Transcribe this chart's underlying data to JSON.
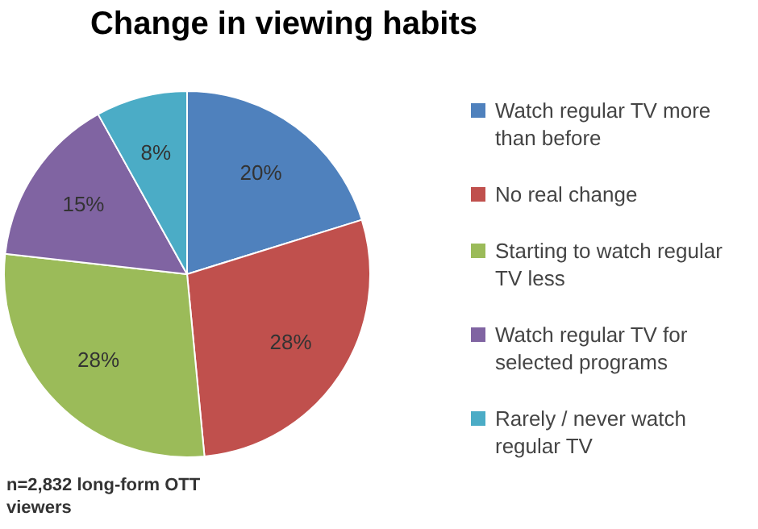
{
  "chart_data": {
    "type": "pie",
    "title": "Change in viewing habits",
    "categories": [
      "Watch regular TV more than before",
      "No real change",
      "Starting to watch regular TV less",
      "Watch regular TV for selected programs",
      "Rarely / never watch regular TV"
    ],
    "values": [
      20,
      28,
      28,
      15,
      8
    ],
    "colors": [
      "#4f81bd",
      "#c0504d",
      "#9bbb59",
      "#8064a2",
      "#4bacc6"
    ],
    "value_labels": [
      "20%",
      "28%",
      "28%",
      "15%",
      "8%"
    ],
    "legend": "right",
    "annotations": [
      "n=2,832 long-form OTT viewers"
    ]
  }
}
